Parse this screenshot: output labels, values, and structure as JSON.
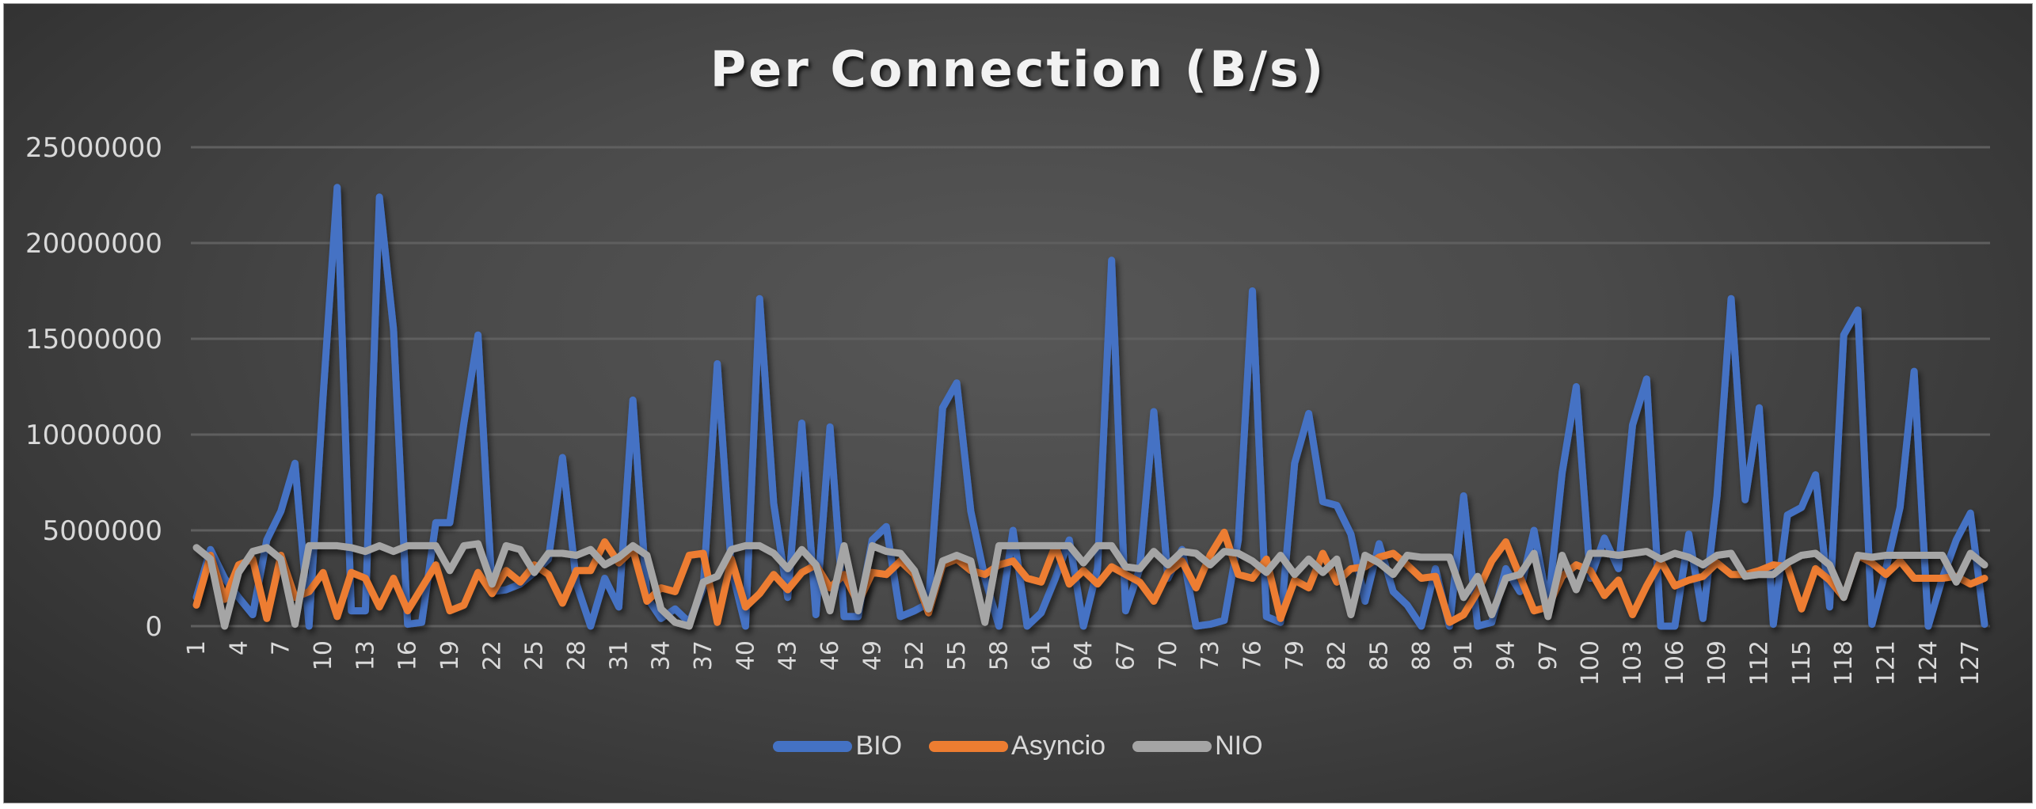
{
  "chart_data": {
    "type": "line",
    "title": "Per Connection (B/s)",
    "xlabel": "",
    "ylabel": "",
    "ylim": [
      0,
      25000000
    ],
    "yticks": [
      0,
      5000000,
      10000000,
      15000000,
      20000000,
      25000000
    ],
    "ytick_labels": [
      "0",
      "5000000",
      "10000000",
      "15000000",
      "20000000",
      "25000000"
    ],
    "x": [
      1,
      2,
      3,
      4,
      5,
      6,
      7,
      8,
      9,
      10,
      11,
      12,
      13,
      14,
      15,
      16,
      17,
      18,
      19,
      20,
      21,
      22,
      23,
      24,
      25,
      26,
      27,
      28,
      29,
      30,
      31,
      32,
      33,
      34,
      35,
      36,
      37,
      38,
      39,
      40,
      41,
      42,
      43,
      44,
      45,
      46,
      47,
      48,
      49,
      50,
      51,
      52,
      53,
      54,
      55,
      56,
      57,
      58,
      59,
      60,
      61,
      62,
      63,
      64,
      65,
      66,
      67,
      68,
      69,
      70,
      71,
      72,
      73,
      74,
      75,
      76,
      77,
      78,
      79,
      80,
      81,
      82,
      83,
      84,
      85,
      86,
      87,
      88,
      89,
      90,
      91,
      92,
      93,
      94,
      95,
      96,
      97,
      98,
      99,
      100,
      101,
      102,
      103,
      104,
      105,
      106,
      107,
      108,
      109,
      110,
      111,
      112,
      113,
      114,
      115,
      116,
      117,
      118,
      119,
      120,
      121,
      122,
      123,
      124,
      125,
      126,
      127,
      128
    ],
    "xtick_labels": [
      "1",
      "4",
      "7",
      "10",
      "13",
      "16",
      "19",
      "22",
      "25",
      "28",
      "31",
      "34",
      "37",
      "40",
      "43",
      "46",
      "49",
      "52",
      "55",
      "58",
      "61",
      "64",
      "67",
      "70",
      "73",
      "76",
      "79",
      "82",
      "85",
      "88",
      "91",
      "94",
      "97",
      "100",
      "103",
      "106",
      "109",
      "112",
      "115",
      "118",
      "121",
      "124",
      "127"
    ],
    "grid": true,
    "legend_position": "bottom",
    "series": [
      {
        "name": "BIO",
        "color": "#4472C4",
        "values": [
          1500000,
          4000000,
          2500000,
          1500000,
          600000,
          4500000,
          6000000,
          8500000,
          0,
          12000000,
          22900000,
          800000,
          800000,
          22400000,
          15500000,
          100000,
          200000,
          5400000,
          5400000,
          10600000,
          15200000,
          1800000,
          1900000,
          2200000,
          2800000,
          3500000,
          8800000,
          2200000,
          0,
          2500000,
          1000000,
          11800000,
          1500000,
          400000,
          900000,
          200000,
          2000000,
          13700000,
          3000000,
          0,
          17100000,
          6400000,
          1500000,
          10600000,
          600000,
          10400000,
          500000,
          500000,
          4500000,
          5200000,
          500000,
          800000,
          1200000,
          11400000,
          12700000,
          6000000,
          2500000,
          0,
          5000000,
          0,
          700000,
          2500000,
          4500000,
          0,
          3000000,
          19100000,
          800000,
          3000000,
          11200000,
          2500000,
          4000000,
          0,
          100000,
          300000,
          4500000,
          17500000,
          500000,
          200000,
          8500000,
          11100000,
          6500000,
          6300000,
          4800000,
          1300000,
          4300000,
          1800000,
          1100000,
          0,
          3000000,
          0,
          6800000,
          0,
          200000,
          3000000,
          1800000,
          5000000,
          1000000,
          8000000,
          12500000,
          2500000,
          4600000,
          3000000,
          10500000,
          12900000,
          0,
          0,
          4800000,
          400000,
          6800000,
          17100000,
          6600000,
          11400000,
          100000,
          5800000,
          6200000,
          7900000,
          1000000,
          15200000,
          16500000,
          100000,
          3000000,
          6200000,
          13300000,
          0,
          2500000,
          4500000,
          5900000,
          100000
        ]
      },
      {
        "name": "Asyncio",
        "color": "#ED7D31",
        "values": [
          1100000,
          3700000,
          1400000,
          3200000,
          3500000,
          400000,
          3700000,
          1500000,
          1800000,
          2800000,
          500000,
          2800000,
          2500000,
          1000000,
          2500000,
          800000,
          2000000,
          3200000,
          800000,
          1100000,
          2800000,
          1700000,
          2900000,
          2300000,
          3200000,
          2700000,
          1200000,
          2900000,
          2900000,
          4400000,
          3300000,
          4000000,
          1300000,
          2000000,
          1800000,
          3700000,
          3800000,
          200000,
          3500000,
          1000000,
          1700000,
          2700000,
          1900000,
          2800000,
          3200000,
          2000000,
          2700000,
          1200000,
          2800000,
          2700000,
          3400000,
          2700000,
          700000,
          3200000,
          3500000,
          2900000,
          2700000,
          3200000,
          3400000,
          2500000,
          2300000,
          4200000,
          2200000,
          2900000,
          2200000,
          3100000,
          2700000,
          2300000,
          1300000,
          2800000,
          3400000,
          2000000,
          3700000,
          4900000,
          2700000,
          2500000,
          3500000,
          400000,
          2400000,
          2000000,
          3800000,
          2300000,
          3000000,
          3100000,
          3600000,
          3800000,
          3200000,
          2500000,
          2600000,
          200000,
          600000,
          1800000,
          3400000,
          4400000,
          2600000,
          800000,
          1000000,
          2600000,
          3200000,
          2900000,
          1600000,
          2400000,
          600000,
          2100000,
          3400000,
          2100000,
          2400000,
          2600000,
          3300000,
          2700000,
          2700000,
          2900000,
          3200000,
          3100000,
          900000,
          3000000,
          2400000,
          1500000,
          3700000,
          3300000,
          2700000,
          3400000,
          2500000,
          2500000,
          2500000,
          2600000,
          2200000,
          2500000
        ]
      },
      {
        "name": "NIO",
        "color": "#A5A5A5",
        "values": [
          4100000,
          3500000,
          0,
          2800000,
          3900000,
          4100000,
          3500000,
          100000,
          4200000,
          4200000,
          4200000,
          4100000,
          3900000,
          4200000,
          3900000,
          4200000,
          4200000,
          4200000,
          2900000,
          4200000,
          4300000,
          2200000,
          4200000,
          4000000,
          2800000,
          3800000,
          3800000,
          3700000,
          4000000,
          3200000,
          3600000,
          4200000,
          3700000,
          900000,
          200000,
          0,
          2300000,
          2600000,
          4000000,
          4200000,
          4200000,
          3800000,
          3000000,
          4000000,
          3200000,
          800000,
          4200000,
          800000,
          4200000,
          3900000,
          3800000,
          2900000,
          900000,
          3400000,
          3700000,
          3400000,
          200000,
          4200000,
          4200000,
          4200000,
          4200000,
          4200000,
          4200000,
          3300000,
          4200000,
          4200000,
          3100000,
          3000000,
          3900000,
          3200000,
          3900000,
          3800000,
          3200000,
          3900000,
          3800000,
          3400000,
          2800000,
          3700000,
          2700000,
          3500000,
          2800000,
          3500000,
          600000,
          3700000,
          3300000,
          2700000,
          3700000,
          3600000,
          3600000,
          3600000,
          1500000,
          2600000,
          600000,
          2500000,
          2700000,
          3800000,
          500000,
          3700000,
          1900000,
          3800000,
          3800000,
          3700000,
          3800000,
          3900000,
          3500000,
          3800000,
          3600000,
          3200000,
          3700000,
          3800000,
          2600000,
          2700000,
          2700000,
          3300000,
          3700000,
          3800000,
          3200000,
          1500000,
          3700000,
          3600000,
          3700000,
          3700000,
          3700000,
          3700000,
          3700000,
          2300000,
          3800000,
          3200000
        ]
      }
    ]
  }
}
